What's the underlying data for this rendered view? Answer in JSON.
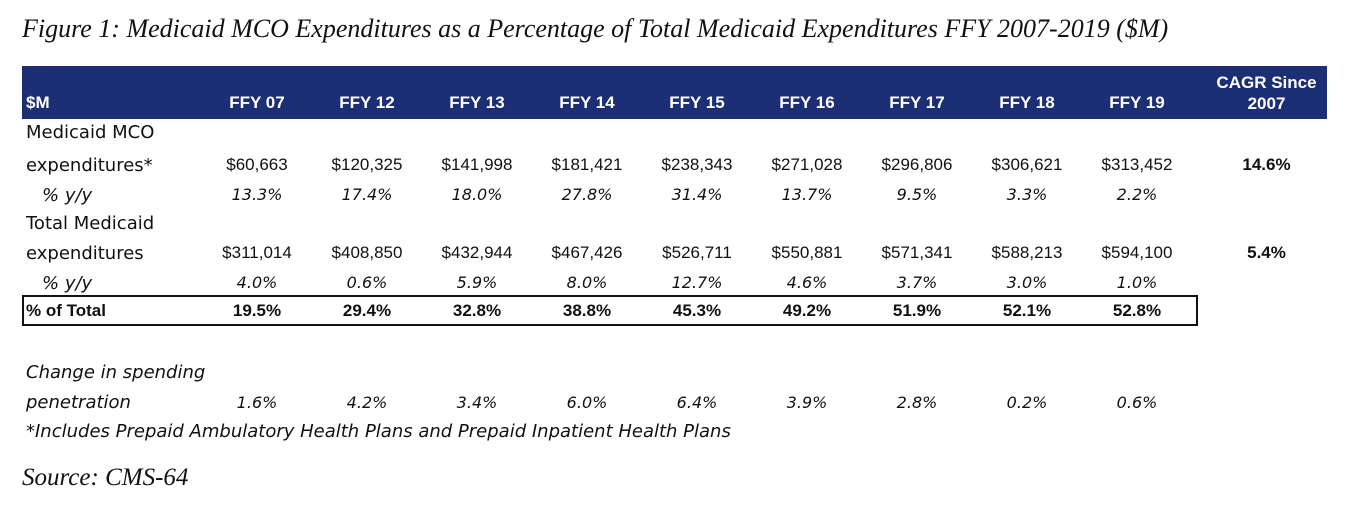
{
  "title": "Figure 1: Medicaid MCO Expenditures as a Percentage of Total Medicaid Expenditures FFY 2007-2019 ($M)",
  "header": {
    "unit_label": "$M",
    "years": [
      "FFY 07",
      "FFY 12",
      "FFY 13",
      "FFY 14",
      "FFY 15",
      "FFY 16",
      "FFY 17",
      "FFY 18",
      "FFY 19"
    ],
    "cagr_line1": "CAGR Since",
    "cagr_line2": "2007"
  },
  "rows": {
    "mco": {
      "label_line1": "Medicaid MCO",
      "label_line2": "expenditures*",
      "values": [
        "$60,663",
        "$120,325",
        "$141,998",
        "$181,421",
        "$238,343",
        "$271,028",
        "$296,806",
        "$306,621",
        "$313,452"
      ],
      "cagr": "14.6%"
    },
    "mco_yy": {
      "label": "% y/y",
      "values": [
        "13.3%",
        "17.4%",
        "18.0%",
        "27.8%",
        "31.4%",
        "13.7%",
        "9.5%",
        "3.3%",
        "2.2%"
      ]
    },
    "total": {
      "label_line1": "Total Medicaid",
      "label_line2": "expenditures",
      "values": [
        "$311,014",
        "$408,850",
        "$432,944",
        "$467,426",
        "$526,711",
        "$550,881",
        "$571,341",
        "$588,213",
        "$594,100"
      ],
      "cagr": "5.4%"
    },
    "total_yy": {
      "label": "% y/y",
      "values": [
        "4.0%",
        "0.6%",
        "5.9%",
        "8.0%",
        "12.7%",
        "4.6%",
        "3.7%",
        "3.0%",
        "1.0%"
      ]
    },
    "pct_total": {
      "label": "% of Total",
      "values": [
        "19.5%",
        "29.4%",
        "32.8%",
        "38.8%",
        "45.3%",
        "49.2%",
        "51.9%",
        "52.1%",
        "52.8%"
      ]
    },
    "change": {
      "label_line1": "Change in spending",
      "label_line2": "penetration",
      "values": [
        "1.6%",
        "4.2%",
        "3.4%",
        "6.0%",
        "6.4%",
        "3.9%",
        "2.8%",
        "0.2%",
        "0.6%"
      ]
    }
  },
  "footnote": "*Includes Prepaid Ambulatory Health Plans and Prepaid Inpatient Health Plans",
  "source": "Source: CMS-64"
}
